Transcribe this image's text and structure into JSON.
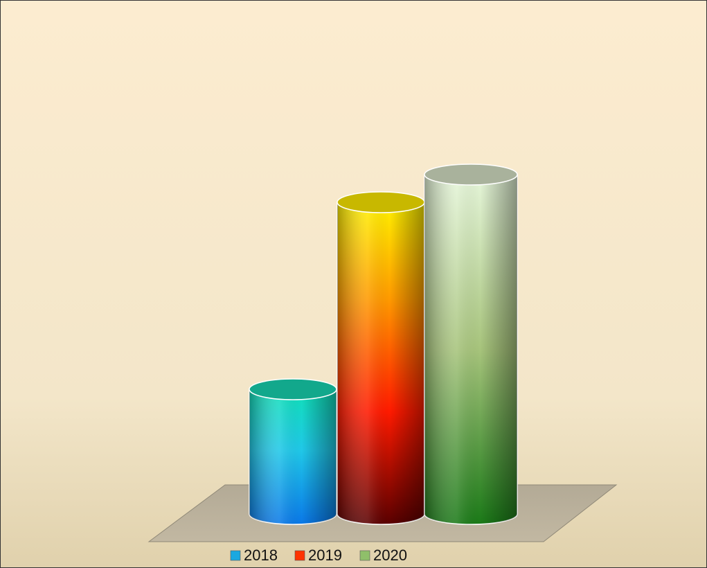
{
  "chart_data": {
    "type": "cylinder",
    "categories": [
      null
    ],
    "series": [
      {
        "name": "2018",
        "color": "#1aa8e0",
        "values": [
          18
        ]
      },
      {
        "name": "2019",
        "color": "#ff3300",
        "values": [
          45
        ]
      },
      {
        "name": "2020",
        "color": "#8fbf6a",
        "values": [
          49
        ]
      }
    ]
  }
}
